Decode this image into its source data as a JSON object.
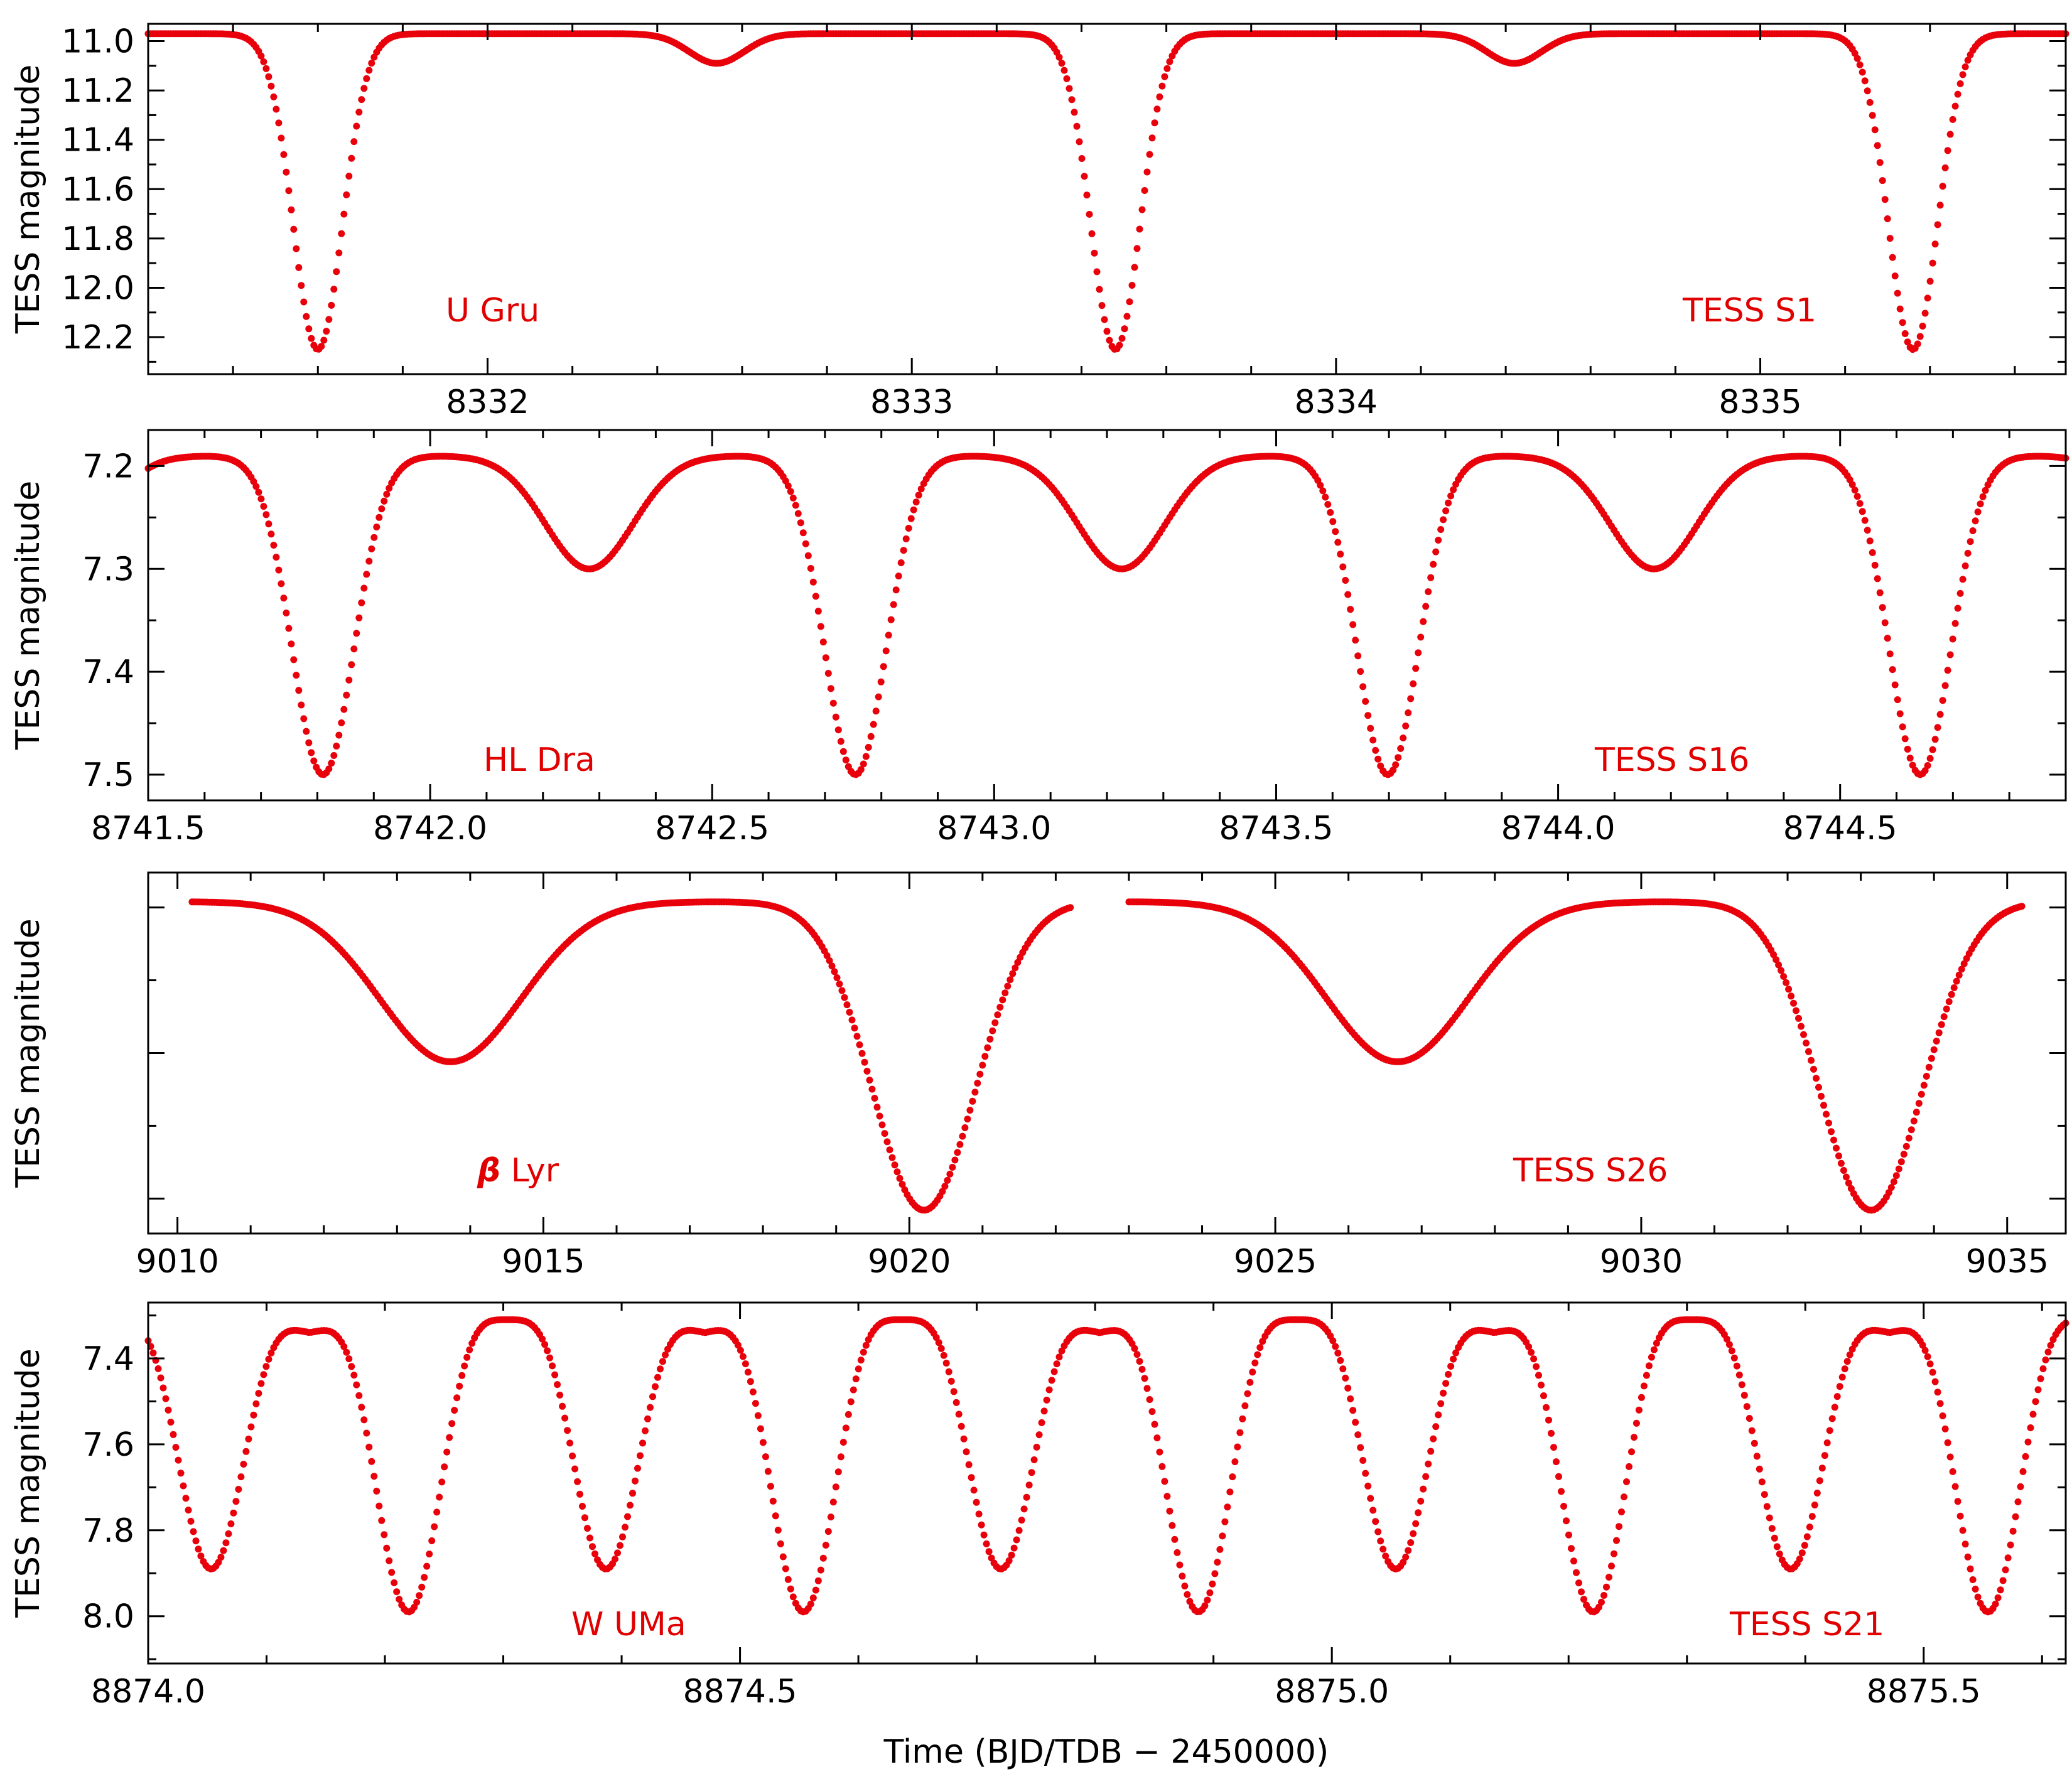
{
  "xlabel": "Time   (BJD/TDB − 2450000)",
  "colors": {
    "data": "#e8000b",
    "axes": "#000000",
    "annotation": "#e00000"
  },
  "chart_data": [
    {
      "type": "scatter",
      "ylabel": "TESS magnitude",
      "xlim": [
        8331.2,
        8335.72
      ],
      "ylim": [
        12.35,
        10.93
      ],
      "y_inverted": true,
      "xticks": [
        8332,
        8333,
        8334,
        8335
      ],
      "xtick_labels": [
        "8332",
        "8333",
        "8334",
        "8335"
      ],
      "yticks": [
        11.0,
        11.2,
        11.4,
        11.6,
        11.8,
        12.0,
        12.2
      ],
      "ytick_labels": [
        "11.0",
        "11.2",
        "11.4",
        "11.6",
        "11.8",
        "12.0",
        "12.2"
      ],
      "annotations": [
        "U  Gru",
        "TESS  S1"
      ],
      "model": {
        "baseline": 10.97,
        "period": 1.88,
        "primary_epoch": 8331.6,
        "primary_depth": 1.28,
        "primary_width": 0.09,
        "secondary_depth": 0.12,
        "secondary_width": 0.1
      },
      "x_range": [
        8331.2,
        8335.72
      ]
    },
    {
      "type": "scatter",
      "ylabel": "TESS magnitude",
      "xlim": [
        8741.5,
        8744.9
      ],
      "ylim": [
        7.525,
        7.165
      ],
      "y_inverted": true,
      "xticks": [
        8741.5,
        8742.0,
        8742.5,
        8743.0,
        8743.5,
        8744.0,
        8744.5
      ],
      "xtick_labels": [
        "8741.5",
        "8742.0",
        "8742.5",
        "8743.0",
        "8743.5",
        "8744.0",
        "8744.5"
      ],
      "yticks": [
        7.2,
        7.3,
        7.4,
        7.5
      ],
      "ytick_labels": [
        "7.2",
        "7.3",
        "7.4",
        "7.5"
      ],
      "annotations": [
        "HL  Dra",
        "TESS  S16"
      ],
      "model": {
        "baseline": 7.19,
        "period": 0.944,
        "primary_epoch": 8741.81,
        "primary_depth": 0.31,
        "primary_width": 0.085,
        "secondary_depth": 0.11,
        "secondary_width": 0.12
      },
      "x_range": [
        8741.5,
        8744.9
      ]
    },
    {
      "type": "scatter",
      "ylabel": "TESS magnitude",
      "xlim": [
        9009.6,
        9035.8
      ],
      "ylim": [
        1.12,
        -0.12
      ],
      "y_inverted": true,
      "xticks": [
        9010,
        9015,
        9020,
        9025,
        9030,
        9035
      ],
      "xtick_labels": [
        "9010",
        "9015",
        "9020",
        "9025",
        "9030",
        "9035"
      ],
      "yticks": [
        0.0,
        0.5,
        1.0
      ],
      "ytick_labels": [
        "",
        "",
        ""
      ],
      "annotations_special": {
        "greek": "β",
        "rest": "  Lyr"
      },
      "annotations": [
        "TESS  S26"
      ],
      "model": {
        "baseline": -0.02,
        "period": 12.94,
        "primary_epoch": 9020.2,
        "primary_depth": 1.06,
        "primary_width": 1.1,
        "secondary_depth": 0.55,
        "secondary_width": 1.5
      },
      "x_ranges": [
        [
          9010.2,
          9022.2
        ],
        [
          9023.0,
          9035.2
        ]
      ]
    },
    {
      "type": "scatter",
      "ylabel": "TESS magnitude",
      "xlim": [
        8874.0,
        8875.62
      ],
      "ylim": [
        8.11,
        7.27
      ],
      "y_inverted": true,
      "xticks": [
        8874.0,
        8874.5,
        8875.0,
        8875.5
      ],
      "xtick_labels": [
        "8874.0",
        "8874.5",
        "8875.0",
        "8875.5"
      ],
      "yticks": [
        7.4,
        7.6,
        7.8,
        8.0
      ],
      "ytick_labels": [
        "7.4",
        "7.6",
        "7.8",
        "8.0"
      ],
      "annotations": [
        "W  UMa",
        "TESS  S21"
      ],
      "model": {
        "baseline": 7.31,
        "period": 0.3336,
        "primary_epoch": 8874.22,
        "primary_depth": 0.68,
        "secondary_depth": 0.58,
        "contact": true
      },
      "x_range": [
        8874.0,
        8875.62
      ]
    }
  ]
}
